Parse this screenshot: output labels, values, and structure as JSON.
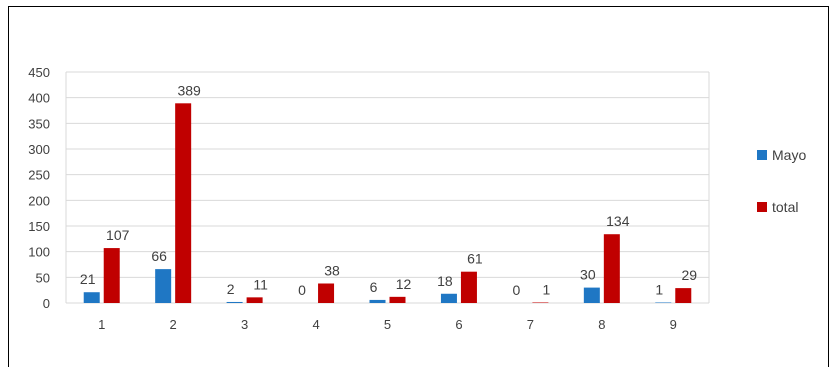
{
  "chart_data": {
    "type": "bar",
    "categories": [
      "1",
      "2",
      "3",
      "4",
      "5",
      "6",
      "7",
      "8",
      "9"
    ],
    "series": [
      {
        "name": "Mayo",
        "values": [
          21,
          66,
          2,
          0,
          6,
          18,
          0,
          30,
          1
        ],
        "color": "#1F77C4"
      },
      {
        "name": "total",
        "values": [
          107,
          389,
          11,
          38,
          12,
          61,
          1,
          134,
          29
        ],
        "color": "#C00000"
      }
    ],
    "ylim": [
      0,
      450
    ],
    "yticks": [
      0,
      50,
      100,
      150,
      200,
      250,
      300,
      350,
      400,
      450
    ],
    "grid": true,
    "legend_position": "right"
  }
}
